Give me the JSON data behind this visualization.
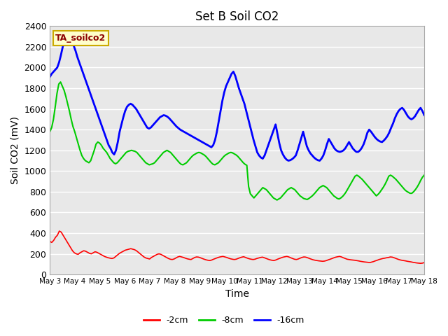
{
  "title": "Set B Soil CO2",
  "ylabel": "Soil CO2 (mV)",
  "xlabel": "Time",
  "ylim": [
    0,
    2400
  ],
  "plot_bg_color": "#e8e8e8",
  "fig_bg_color": "#ffffff",
  "grid_color": "#ffffff",
  "label_box": "TA_soilco2",
  "xtick_labels": [
    "May 3",
    "May 4",
    "May 5",
    "May 6",
    "May 7",
    "May 8",
    "May 9",
    "May 10",
    "May 11",
    "May 12",
    "May 13",
    "May 14",
    "May 15",
    "May 16",
    "May 17",
    "May 18"
  ],
  "ytick_vals": [
    0,
    200,
    400,
    600,
    800,
    1000,
    1200,
    1400,
    1600,
    1800,
    2000,
    2200,
    2400
  ],
  "red_color": "#ff0000",
  "green_color": "#00cc00",
  "blue_color": "#0000ff",
  "red_2cm": [
    320,
    310,
    330,
    360,
    380,
    420,
    410,
    380,
    350,
    320,
    290,
    260,
    230,
    210,
    200,
    195,
    210,
    220,
    230,
    225,
    215,
    205,
    200,
    210,
    220,
    215,
    205,
    195,
    185,
    175,
    168,
    162,
    158,
    155,
    160,
    175,
    190,
    205,
    215,
    225,
    235,
    240,
    245,
    250,
    245,
    240,
    230,
    215,
    200,
    185,
    170,
    160,
    155,
    150,
    165,
    175,
    185,
    195,
    200,
    195,
    185,
    175,
    165,
    155,
    148,
    145,
    150,
    160,
    170,
    175,
    170,
    165,
    158,
    152,
    148,
    145,
    155,
    165,
    170,
    168,
    162,
    155,
    148,
    142,
    138,
    135,
    140,
    148,
    155,
    162,
    168,
    172,
    175,
    170,
    165,
    158,
    152,
    148,
    145,
    148,
    155,
    162,
    168,
    172,
    165,
    158,
    152,
    148,
    145,
    148,
    155,
    160,
    165,
    168,
    162,
    155,
    148,
    142,
    138,
    135,
    140,
    148,
    155,
    162,
    168,
    172,
    175,
    170,
    162,
    155,
    148,
    145,
    150,
    158,
    165,
    170,
    168,
    162,
    155,
    148,
    142,
    138,
    135,
    132,
    130,
    128,
    130,
    135,
    142,
    148,
    155,
    162,
    168,
    172,
    175,
    170,
    162,
    155,
    148,
    145,
    142,
    140,
    138,
    135,
    132,
    128,
    125,
    122,
    120,
    118,
    115,
    120,
    125,
    132,
    138,
    145,
    150,
    155,
    158,
    162,
    165,
    170,
    168,
    162,
    155,
    148,
    142,
    138,
    135,
    132,
    128,
    125,
    122,
    118,
    115,
    112,
    110,
    108,
    110,
    115
  ],
  "green_8cm": [
    1380,
    1420,
    1500,
    1620,
    1750,
    1840,
    1860,
    1820,
    1780,
    1720,
    1650,
    1580,
    1500,
    1430,
    1380,
    1320,
    1260,
    1200,
    1150,
    1120,
    1100,
    1090,
    1080,
    1100,
    1150,
    1200,
    1260,
    1280,
    1270,
    1250,
    1220,
    1200,
    1180,
    1150,
    1120,
    1100,
    1080,
    1070,
    1080,
    1100,
    1120,
    1140,
    1160,
    1180,
    1190,
    1195,
    1200,
    1195,
    1190,
    1180,
    1160,
    1140,
    1120,
    1100,
    1080,
    1070,
    1060,
    1065,
    1070,
    1080,
    1100,
    1120,
    1140,
    1160,
    1180,
    1190,
    1200,
    1190,
    1180,
    1160,
    1140,
    1120,
    1100,
    1080,
    1065,
    1060,
    1070,
    1080,
    1100,
    1120,
    1140,
    1155,
    1165,
    1175,
    1180,
    1175,
    1165,
    1155,
    1140,
    1120,
    1100,
    1080,
    1065,
    1060,
    1070,
    1080,
    1100,
    1120,
    1140,
    1155,
    1165,
    1175,
    1180,
    1175,
    1165,
    1155,
    1140,
    1120,
    1100,
    1080,
    1065,
    1055,
    850,
    780,
    760,
    740,
    760,
    780,
    800,
    820,
    840,
    830,
    820,
    800,
    780,
    760,
    740,
    730,
    720,
    730,
    740,
    760,
    780,
    800,
    820,
    830,
    840,
    830,
    820,
    800,
    780,
    760,
    748,
    735,
    730,
    725,
    735,
    748,
    762,
    780,
    800,
    820,
    840,
    850,
    860,
    850,
    840,
    820,
    800,
    780,
    760,
    748,
    735,
    730,
    740,
    755,
    775,
    800,
    830,
    860,
    890,
    920,
    950,
    960,
    950,
    935,
    920,
    900,
    880,
    860,
    840,
    820,
    800,
    780,
    760,
    775,
    795,
    820,
    845,
    875,
    910,
    950,
    960,
    950,
    935,
    920,
    900,
    880,
    860,
    840,
    820,
    805,
    795,
    785,
    785,
    800,
    820,
    845,
    875,
    910,
    940,
    960
  ],
  "blue_16cm": [
    1910,
    1940,
    1960,
    1980,
    2000,
    2050,
    2120,
    2200,
    2280,
    2320,
    2300,
    2280,
    2250,
    2210,
    2160,
    2100,
    2050,
    2000,
    1950,
    1900,
    1850,
    1800,
    1750,
    1700,
    1650,
    1600,
    1550,
    1500,
    1450,
    1400,
    1350,
    1300,
    1250,
    1220,
    1180,
    1160,
    1200,
    1280,
    1380,
    1450,
    1520,
    1580,
    1620,
    1640,
    1650,
    1640,
    1620,
    1600,
    1570,
    1540,
    1510,
    1480,
    1450,
    1420,
    1410,
    1420,
    1440,
    1460,
    1480,
    1500,
    1520,
    1530,
    1540,
    1535,
    1525,
    1510,
    1490,
    1470,
    1450,
    1430,
    1415,
    1400,
    1390,
    1380,
    1370,
    1360,
    1350,
    1340,
    1330,
    1320,
    1310,
    1300,
    1290,
    1280,
    1270,
    1260,
    1250,
    1240,
    1230,
    1250,
    1300,
    1380,
    1480,
    1580,
    1680,
    1760,
    1820,
    1860,
    1900,
    1940,
    1960,
    1920,
    1860,
    1800,
    1750,
    1700,
    1650,
    1580,
    1510,
    1440,
    1370,
    1300,
    1240,
    1180,
    1150,
    1130,
    1120,
    1150,
    1200,
    1250,
    1300,
    1350,
    1400,
    1450,
    1360,
    1270,
    1200,
    1160,
    1130,
    1110,
    1100,
    1105,
    1115,
    1130,
    1150,
    1200,
    1260,
    1320,
    1380,
    1310,
    1240,
    1200,
    1170,
    1150,
    1130,
    1115,
    1105,
    1100,
    1120,
    1150,
    1200,
    1260,
    1310,
    1280,
    1250,
    1220,
    1200,
    1190,
    1185,
    1190,
    1200,
    1220,
    1250,
    1280,
    1250,
    1220,
    1200,
    1185,
    1185,
    1200,
    1225,
    1260,
    1310,
    1370,
    1400,
    1380,
    1355,
    1330,
    1310,
    1295,
    1285,
    1280,
    1295,
    1315,
    1340,
    1375,
    1420,
    1460,
    1510,
    1550,
    1580,
    1600,
    1610,
    1590,
    1560,
    1530,
    1510,
    1500,
    1510,
    1530,
    1560,
    1590,
    1610,
    1580,
    1540
  ]
}
